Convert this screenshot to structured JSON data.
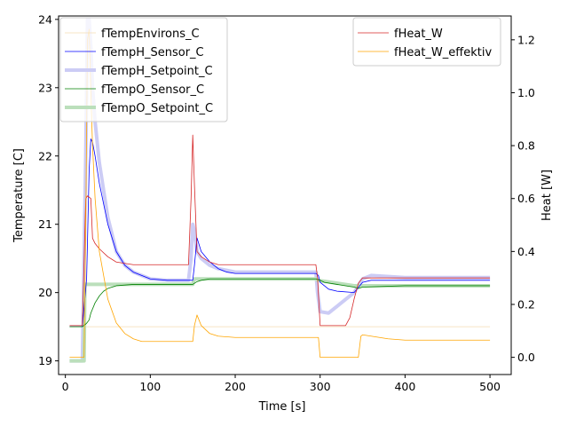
{
  "chart_data": {
    "type": "line",
    "xlabel": "Time [s]",
    "ylabel_left": "Temperature [C]",
    "ylabel_right": "Heat [W]",
    "xlim": [
      -8,
      525
    ],
    "ylim_left": [
      18.8,
      24.05
    ],
    "ylim_right": [
      -0.065,
      1.29
    ],
    "xticks": [
      0,
      100,
      200,
      300,
      400,
      500
    ],
    "yticks_left": [
      19,
      20,
      21,
      22,
      23,
      24
    ],
    "yticks_right": [
      0.0,
      0.2,
      0.4,
      0.6,
      0.8,
      1.0,
      1.2
    ],
    "yticks_right_labels": [
      "0.0",
      "0.2",
      "0.4",
      "0.6",
      "0.8",
      "1.0",
      "1.2"
    ],
    "grid": false,
    "legend_left_placement": "upper-left",
    "legend_right_placement": "upper-right",
    "series": [
      {
        "name": "fTempEnvirons_C",
        "axis": "left",
        "color": "#f5deb3",
        "width": 0.8,
        "x": [
          5,
          500
        ],
        "y": [
          19.5,
          19.5
        ]
      },
      {
        "name": "fTempH_Sensor_C",
        "axis": "left",
        "color": "#0000ff",
        "width": 0.8,
        "x": [
          5,
          20,
          25,
          28,
          30,
          32,
          35,
          40,
          50,
          60,
          70,
          80,
          100,
          120,
          140,
          150,
          152,
          155,
          160,
          170,
          180,
          190,
          200,
          250,
          295,
          298,
          300,
          305,
          310,
          320,
          340,
          350,
          360,
          400,
          450,
          500
        ],
        "y": [
          19.5,
          19.5,
          20.2,
          21.8,
          22.25,
          22.2,
          22.0,
          21.6,
          21.0,
          20.6,
          20.4,
          20.3,
          20.2,
          20.18,
          20.18,
          20.18,
          20.4,
          20.8,
          20.6,
          20.45,
          20.35,
          20.3,
          20.28,
          20.28,
          20.28,
          20.25,
          20.15,
          20.1,
          20.05,
          20.02,
          20.0,
          20.15,
          20.18,
          20.18,
          20.18,
          20.18
        ]
      },
      {
        "name": "fTempH_Setpoint_C",
        "axis": "left",
        "color": "#ccccf5",
        "width": 4,
        "x": [
          5,
          20,
          24,
          26,
          28,
          30,
          32,
          35,
          40,
          50,
          60,
          70,
          80,
          100,
          120,
          145,
          148,
          150,
          152,
          155,
          160,
          170,
          180,
          200,
          250,
          295,
          297,
          300,
          310,
          320,
          330,
          340,
          345,
          350,
          360,
          400,
          450,
          500
        ],
        "y": [
          19.0,
          19.0,
          22.0,
          24.0,
          24.0,
          23.6,
          23.0,
          22.5,
          21.9,
          21.1,
          20.6,
          20.4,
          20.3,
          20.2,
          20.18,
          20.18,
          20.5,
          21.0,
          20.9,
          20.6,
          20.5,
          20.4,
          20.35,
          20.3,
          20.3,
          20.3,
          20.0,
          19.72,
          19.7,
          19.8,
          19.9,
          20.0,
          20.1,
          20.2,
          20.25,
          20.22,
          20.22,
          20.22
        ]
      },
      {
        "name": "fTempO_Sensor_C",
        "axis": "left",
        "color": "#008000",
        "width": 0.8,
        "x": [
          5,
          20,
          25,
          28,
          30,
          35,
          40,
          45,
          50,
          60,
          70,
          80,
          100,
          140,
          150,
          155,
          160,
          170,
          200,
          250,
          295,
          300,
          305,
          320,
          340,
          345,
          350,
          400,
          500
        ],
        "y": [
          19.5,
          19.5,
          19.55,
          19.6,
          19.7,
          19.85,
          19.95,
          20.02,
          20.06,
          20.1,
          20.11,
          20.12,
          20.12,
          20.12,
          20.12,
          20.16,
          20.18,
          20.2,
          20.2,
          20.2,
          20.2,
          20.18,
          20.15,
          20.12,
          20.08,
          20.06,
          20.08,
          20.1,
          20.1
        ]
      },
      {
        "name": "fTempO_Setpoint_C",
        "axis": "left",
        "color": "#bbdfbb",
        "width": 4,
        "x": [
          5,
          22,
          23,
          150,
          152,
          295,
          297,
          340,
          345,
          350,
          500
        ],
        "y": [
          19.0,
          19.0,
          20.12,
          20.12,
          20.2,
          20.2,
          20.18,
          20.1,
          20.1,
          20.1,
          20.1
        ]
      },
      {
        "name": "fHeat_W",
        "axis": "right",
        "color": "#d62728",
        "width": 0.8,
        "x": [
          5,
          20,
          24,
          26,
          30,
          32,
          35,
          40,
          50,
          60,
          70,
          80,
          100,
          145,
          148,
          150,
          152,
          155,
          160,
          170,
          180,
          200,
          250,
          295,
          297,
          300,
          310,
          320,
          330,
          335,
          340,
          345,
          350,
          360,
          400,
          450,
          500
        ],
        "y": [
          0.12,
          0.12,
          0.6,
          0.61,
          0.6,
          0.45,
          0.43,
          0.41,
          0.38,
          0.36,
          0.355,
          0.35,
          0.35,
          0.35,
          0.6,
          0.84,
          0.65,
          0.4,
          0.38,
          0.36,
          0.35,
          0.35,
          0.35,
          0.35,
          0.3,
          0.12,
          0.12,
          0.12,
          0.12,
          0.15,
          0.22,
          0.28,
          0.3,
          0.3,
          0.3,
          0.3,
          0.3
        ]
      },
      {
        "name": "fHeat_W_effektiv",
        "axis": "right",
        "color": "#ffa500",
        "width": 0.8,
        "x": [
          5,
          22,
          24,
          26,
          28,
          30,
          32,
          35,
          40,
          50,
          60,
          70,
          80,
          90,
          100,
          150,
          152,
          155,
          160,
          170,
          180,
          200,
          250,
          295,
          298,
          300,
          310,
          345,
          348,
          350,
          360,
          380,
          400,
          450,
          500
        ],
        "y": [
          0.0,
          0.0,
          0.5,
          1.2,
          1.24,
          1.0,
          0.8,
          0.6,
          0.4,
          0.22,
          0.13,
          0.09,
          0.07,
          0.06,
          0.06,
          0.06,
          0.12,
          0.16,
          0.12,
          0.09,
          0.08,
          0.075,
          0.075,
          0.075,
          0.075,
          0.0,
          0.0,
          0.0,
          0.08,
          0.085,
          0.08,
          0.07,
          0.065,
          0.065,
          0.065
        ]
      }
    ]
  }
}
